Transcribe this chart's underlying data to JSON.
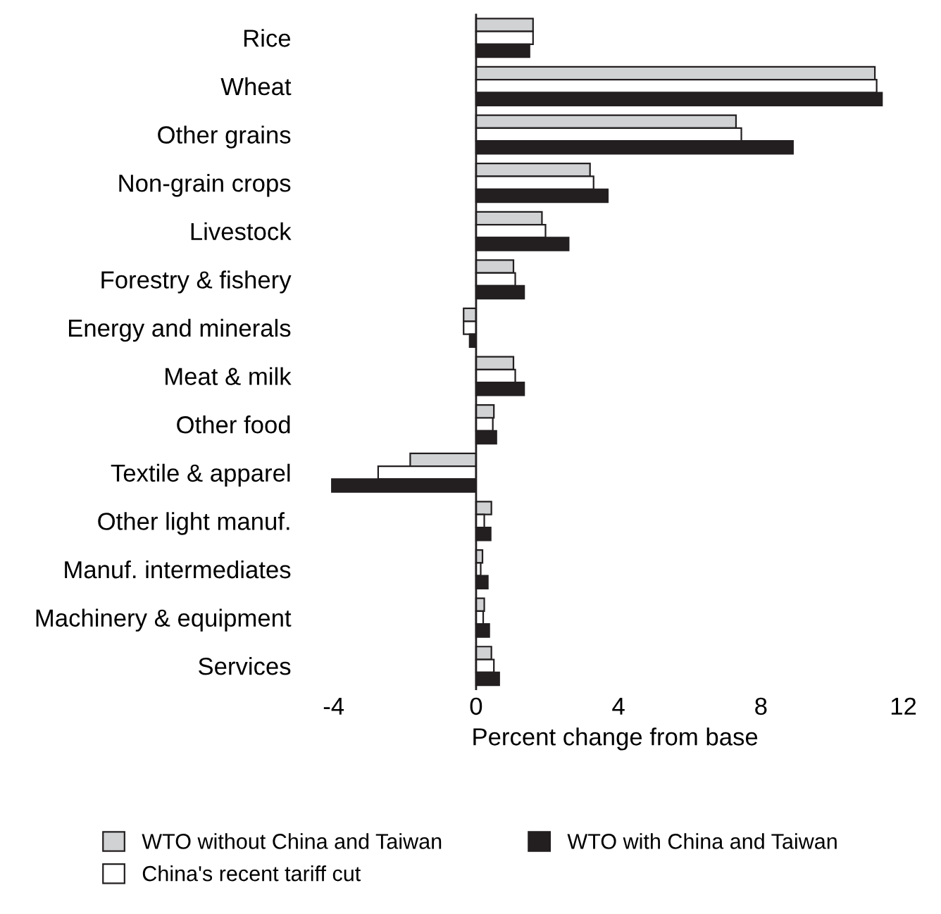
{
  "chart_data": {
    "type": "bar",
    "orientation": "horizontal",
    "xlabel": "Percent change from base",
    "categories": [
      "Rice",
      "Wheat",
      "Other grains",
      "Non-grain crops",
      "Livestock",
      "Forestry & fishery",
      "Energy and minerals",
      "Meat & milk",
      "Other food",
      "Textile & apparel",
      "Other light manuf.",
      "Manuf. intermediates",
      "Machinery & equipment",
      "Services"
    ],
    "series": [
      {
        "name": "WTO without China and Taiwan",
        "color": "#d0d2d3",
        "values": [
          1.6,
          11.2,
          7.3,
          3.2,
          1.85,
          1.05,
          -0.35,
          1.05,
          0.5,
          -1.85,
          0.43,
          0.18,
          0.23,
          0.43
        ]
      },
      {
        "name": "China's recent tariff cut",
        "color": "#ffffff",
        "values": [
          1.6,
          11.25,
          7.45,
          3.3,
          1.95,
          1.1,
          -0.35,
          1.1,
          0.47,
          -2.75,
          0.23,
          0.13,
          0.2,
          0.5
        ]
      },
      {
        "name": "WTO with China and Taiwan",
        "color": "#231f20",
        "values": [
          1.5,
          11.4,
          8.9,
          3.7,
          2.6,
          1.35,
          -0.18,
          1.35,
          0.57,
          -4.05,
          0.41,
          0.33,
          0.37,
          0.65
        ]
      }
    ],
    "xlim": [
      -4.2,
      12
    ],
    "xticks": [
      -4,
      0,
      4,
      8,
      12
    ],
    "grid": false,
    "legend": "bottom",
    "ref_lines": [
      {
        "axis": "x",
        "value": 0,
        "color": "#231f20"
      }
    ]
  }
}
